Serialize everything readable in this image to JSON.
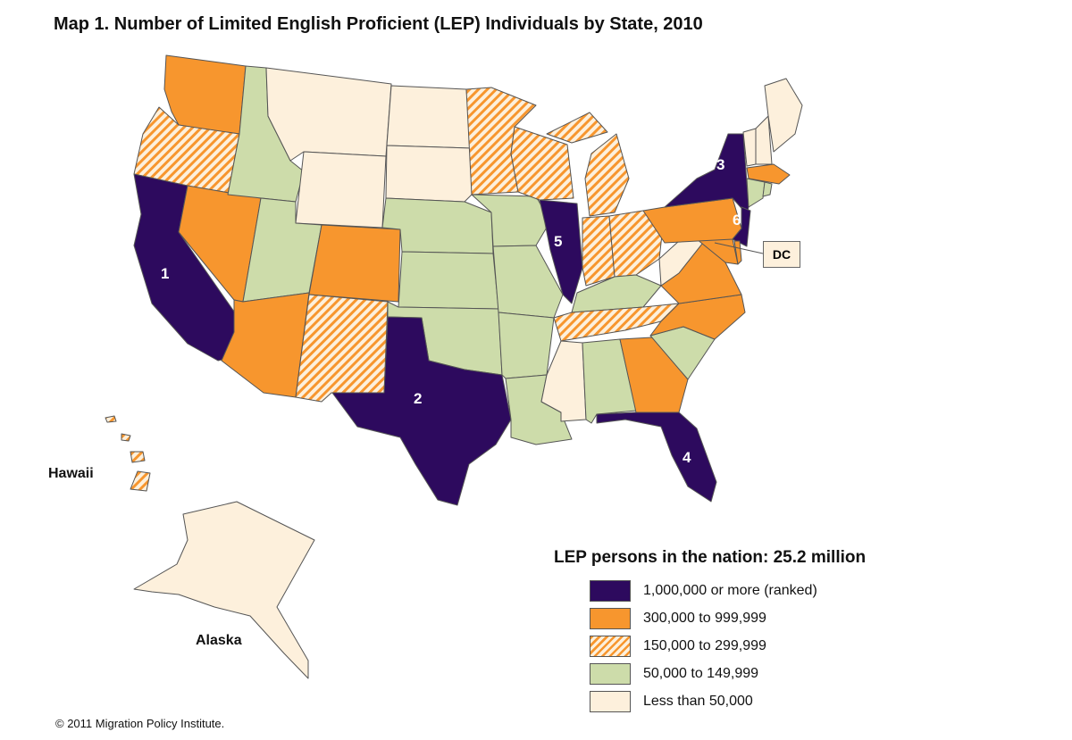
{
  "title": "Map 1. Number of Limited English Proficient (LEP) Individuals by State, 2010",
  "colors": {
    "cat1": "#2d0a5e",
    "cat2": "#f7962e",
    "cat3_stripe": "#f7962e",
    "cat3_bg": "#fdf0dc",
    "cat4": "#cddcaa",
    "cat5": "#fdf0dc"
  },
  "map": {
    "ranks": {
      "california": "1",
      "texas": "2",
      "new_york": "3",
      "florida": "4",
      "illinois": "5",
      "new_jersey": "6"
    },
    "labels": {
      "hawaii": "Hawaii",
      "alaska": "Alaska",
      "dc": "DC"
    }
  },
  "legend": {
    "title": "LEP persons in the nation: 25.2 million",
    "items": [
      {
        "label": "1,000,000 or more (ranked)"
      },
      {
        "label": "300,000 to 999,999"
      },
      {
        "label": "150,000 to 299,999"
      },
      {
        "label": "50,000 to 149,999"
      },
      {
        "label": "Less than 50,000"
      }
    ]
  },
  "footer": "© 2011 Migration Policy Institute."
}
